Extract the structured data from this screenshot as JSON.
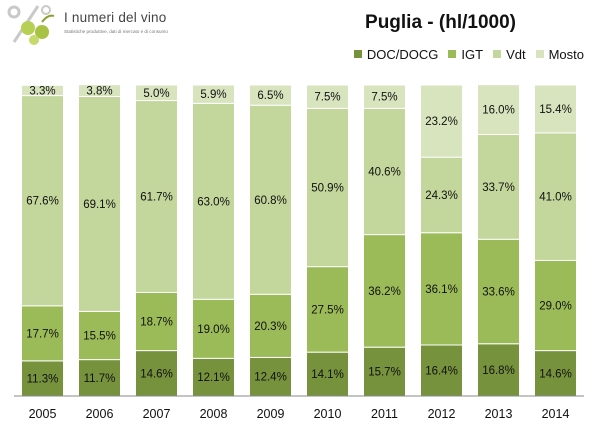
{
  "logo": {
    "title": "I numeri del vino",
    "subtitle": "Statistiche produttive, dati di mercato e di consumo"
  },
  "chart_data": {
    "type": "bar",
    "stacked": true,
    "percent": true,
    "title": "Puglia - (hl/1000)",
    "xlabel": "",
    "ylabel": "",
    "ylim": [
      0,
      100
    ],
    "legend_position": "top-right",
    "categories": [
      "2005",
      "2006",
      "2007",
      "2008",
      "2009",
      "2010",
      "2011",
      "2012",
      "2013",
      "2014"
    ],
    "series": [
      {
        "name": "DOC/DOCG",
        "color": "#76923c",
        "values": [
          11.3,
          11.7,
          14.6,
          12.1,
          12.4,
          14.1,
          15.7,
          16.4,
          16.8,
          14.6
        ]
      },
      {
        "name": "IGT",
        "color": "#9bbb59",
        "values": [
          17.7,
          15.5,
          18.7,
          19.0,
          20.3,
          27.5,
          36.2,
          36.1,
          33.6,
          29.0
        ]
      },
      {
        "name": "Vdt",
        "color": "#c3d69b",
        "values": [
          67.6,
          69.1,
          61.7,
          63.0,
          60.8,
          50.9,
          40.6,
          24.3,
          33.7,
          41.0
        ]
      },
      {
        "name": "Mosto",
        "color": "#d7e4bd",
        "values": [
          3.3,
          3.8,
          5.0,
          5.9,
          6.5,
          7.5,
          7.5,
          23.2,
          16.0,
          15.4
        ]
      }
    ],
    "labels": [
      [
        "11.3%",
        "11.7%",
        "14.6%",
        "12.1%",
        "12.4%",
        "14.1%",
        "15.7%",
        "16.4%",
        "16.8%",
        "14.6%"
      ],
      [
        "17.7%",
        "15.5%",
        "18.7%",
        "19.0%",
        "20.3%",
        "27.5%",
        "36.2%",
        "36.1%",
        "33.6%",
        "29.0%"
      ],
      [
        "67.6%",
        "69.1%",
        "61.7%",
        "63.0%",
        "60.8%",
        "50.9%",
        "40.6%",
        "24.3%",
        "33.7%",
        "41.0%"
      ],
      [
        "3.3%",
        "3.8%",
        "5.0%",
        "5.9%",
        "6.5%",
        "7.5%",
        "7.5%",
        "23.2%",
        "16.0%",
        "15.4%"
      ]
    ]
  }
}
